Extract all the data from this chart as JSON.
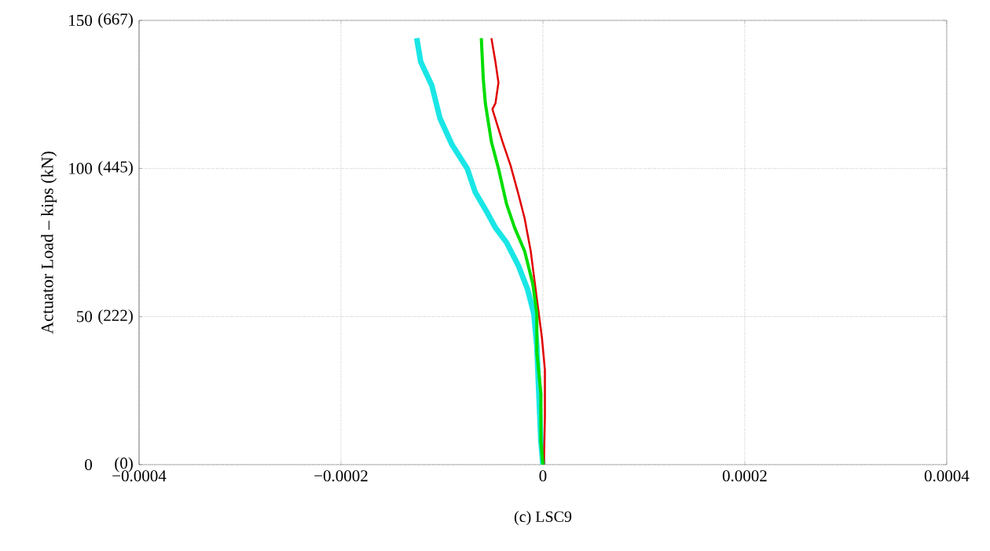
{
  "chart_data": {
    "type": "line",
    "ylabel": "Actuator Load – kips (kN)",
    "annotations": [
      "(c) LSC9"
    ],
    "xlim": [
      -0.0004,
      0.0004
    ],
    "xticks": [
      {
        "value": -0.0004,
        "label": "−0.0004"
      },
      {
        "value": -0.0002,
        "label": "−0.0002"
      },
      0,
      0.0002,
      0.0004
    ],
    "ylim": [
      0,
      150
    ],
    "yticks": [
      0,
      50,
      100,
      150
    ],
    "y2lim": [
      0,
      667.2
    ],
    "y2ticks": [
      {
        "value": 0,
        "label": "(0)"
      },
      {
        "value": 222,
        "label": "(222)"
      },
      {
        "value": 445,
        "label": "(445)"
      },
      {
        "value": 667,
        "label": "(667)"
      }
    ],
    "grid": true,
    "line_style": "solid",
    "series": [
      {
        "color": "#1ae6e6",
        "x": [
          -0.000125,
          -0.000121,
          -0.00011,
          -0.000102,
          -9e-05,
          -7.5e-05,
          -6.7e-05,
          -5.5e-05,
          -4.7e-05,
          -3.6e-05,
          -2.4e-05,
          -1.5e-05,
          -9e-06,
          -6e-06,
          -4e-06,
          -2e-06,
          0
        ],
        "values": [
          144,
          136,
          128,
          117,
          108,
          100,
          92,
          85,
          80,
          75,
          67,
          59,
          51,
          40,
          24,
          8,
          0
        ]
      },
      {
        "color": "#e00000",
        "x": [
          -5.1e-05,
          -4.7e-05,
          -4.4e-05,
          -4.7e-05,
          -5e-05,
          -4e-05,
          -3.2e-05,
          -2.4e-05,
          -1.8e-05,
          -1.2e-05,
          -6e-06,
          -1e-06,
          2e-06,
          2e-06,
          1e-06
        ],
        "values": [
          144,
          136,
          129,
          122,
          120,
          109,
          101,
          91,
          83,
          72,
          56,
          43,
          32,
          16,
          0
        ]
      },
      {
        "color": "#00dd00",
        "x": [
          -6.1e-05,
          -5.9e-05,
          -5.7e-05,
          -5.1e-05,
          -4.4e-05,
          -3.6e-05,
          -2.8e-05,
          -1.8e-05,
          -1e-05,
          -6e-06,
          -6e-06,
          -2e-06,
          -2e-06,
          0
        ],
        "values": [
          144,
          130,
          122,
          109,
          100,
          88,
          80,
          72,
          61,
          51,
          38,
          24,
          8,
          0
        ]
      }
    ]
  }
}
